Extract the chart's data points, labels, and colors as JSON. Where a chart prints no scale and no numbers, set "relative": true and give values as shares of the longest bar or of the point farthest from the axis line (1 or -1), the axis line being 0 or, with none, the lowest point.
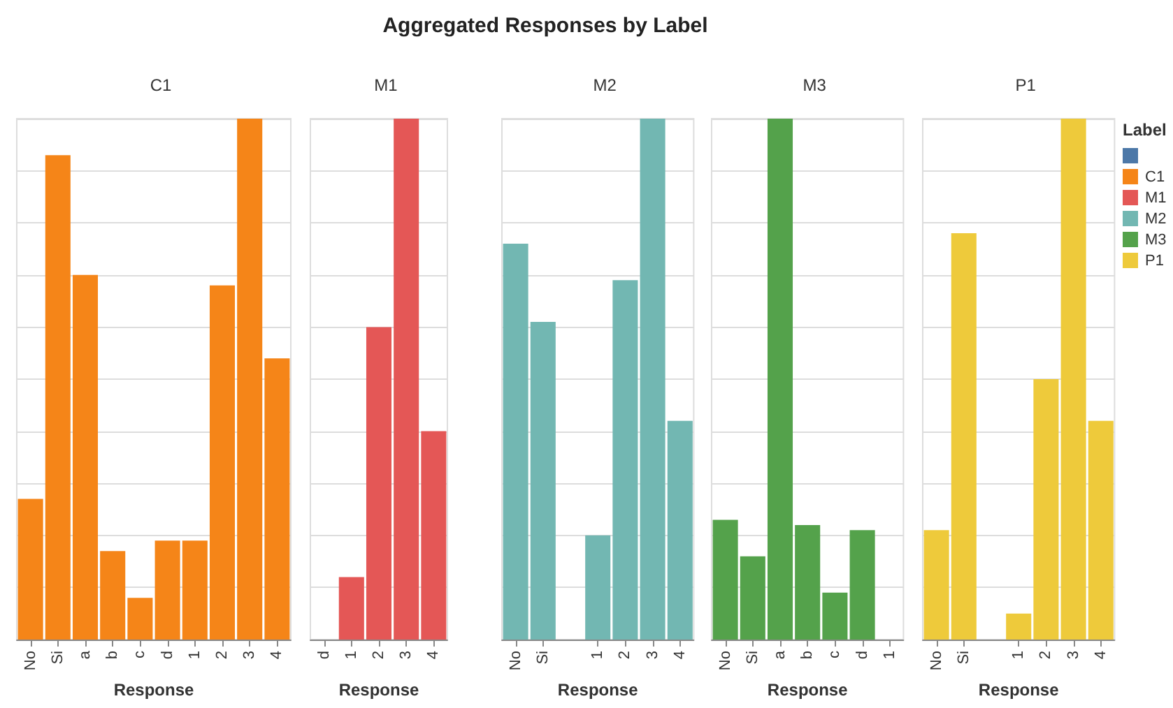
{
  "chart_data": [
    {
      "type": "bar",
      "subtitle": "C1",
      "xlabel": "Response",
      "relative": true,
      "grid": true,
      "legend": "right",
      "legend_title": "Label",
      "categories": [
        "No",
        "Si",
        "a",
        "b",
        "c",
        "d",
        "1",
        "2",
        "3",
        "4"
      ],
      "series": [
        {
          "color": "#4c78a8",
          "values": [
            null,
            null,
            null,
            null,
            null,
            null,
            null,
            null,
            null,
            null
          ]
        },
        {
          "name": "C1",
          "color": "#f58518",
          "values": [
            0.27,
            0.93,
            0.7,
            0.17,
            0.08,
            0.19,
            0.19,
            0.68,
            1,
            0.54
          ]
        }
      ]
    },
    {
      "type": "bar",
      "subtitle": "M1",
      "xlabel": "Response",
      "relative": true,
      "grid": true,
      "categories": [
        "d",
        "1",
        "2",
        "3",
        "4"
      ],
      "series": [
        {
          "name": "M1",
          "color": "#e45756",
          "values": [
            null,
            0.12,
            0.6,
            1,
            0.4
          ]
        }
      ]
    },
    {
      "type": "bar",
      "title": "Aggregated Responses by Label",
      "subtitle": "M2",
      "xlabel": "Response",
      "relative": true,
      "grid": true,
      "categories": [
        "No",
        "Si",
        null,
        "1",
        "2",
        "3",
        "4"
      ],
      "series": [
        {
          "name": "M2",
          "color": "#72b7b2",
          "values": [
            0.76,
            0.61,
            null,
            0.2,
            0.69,
            1,
            0.42
          ]
        }
      ]
    },
    {
      "type": "bar",
      "subtitle": "M3",
      "xlabel": "Response",
      "relative": true,
      "grid": true,
      "categories": [
        "No",
        "Si",
        "a",
        "b",
        "c",
        "d",
        "1"
      ],
      "series": [
        {
          "name": "M3",
          "color": "#54a24b",
          "values": [
            0.23,
            0.16,
            1,
            0.22,
            0.09,
            0.21,
            null
          ]
        }
      ]
    },
    {
      "type": "bar",
      "subtitle": "P1",
      "xlabel": "Response",
      "relative": true,
      "grid": true,
      "categories": [
        "No",
        "Si",
        null,
        "1",
        "2",
        "3",
        "4"
      ],
      "series": [
        {
          "name": "P1",
          "color": "#eeca3b",
          "values": [
            0.21,
            0.78,
            null,
            0.05,
            0.5,
            1,
            0.42
          ]
        }
      ]
    }
  ]
}
